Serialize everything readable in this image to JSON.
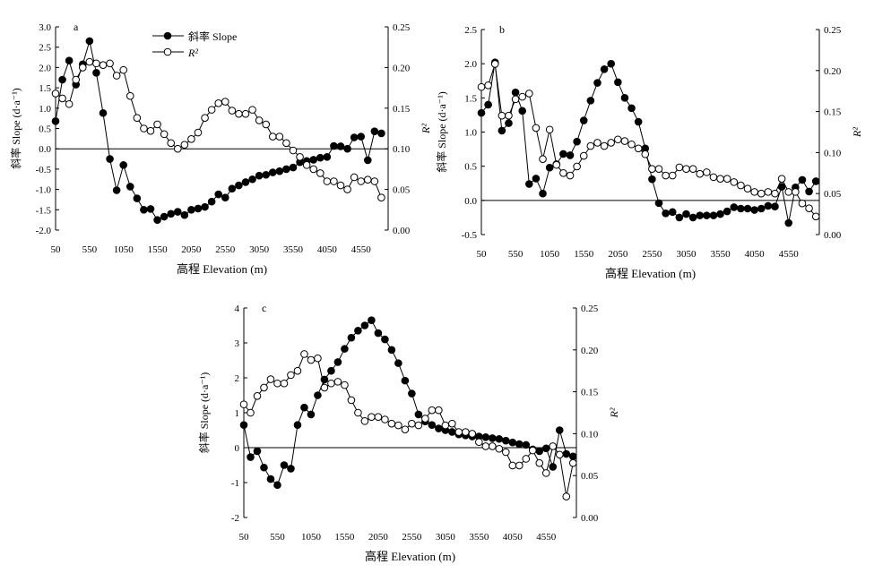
{
  "figure": {
    "x_axis_label": "高程 Elevation (m)",
    "y_left_label": "斜率 Slope (d·a⁻¹)",
    "y_right_label": "R²",
    "legend_slope": "斜率 Slope",
    "legend_r2": "R²"
  },
  "chart_data": [
    {
      "type": "line",
      "panel": "a",
      "xlabel": "高程 Elevation (m)",
      "ylabel": "斜率 Slope (d·a⁻¹)",
      "y2label": "R²",
      "xlim": [
        50,
        4950
      ],
      "ylim": [
        -2.0,
        3.0
      ],
      "y2lim": [
        0.0,
        0.25
      ],
      "xticks": [
        50,
        550,
        1050,
        1550,
        2050,
        2550,
        3050,
        3550,
        4050,
        4550
      ],
      "yticks": [
        -2.0,
        -1.5,
        -1.0,
        -0.5,
        0.0,
        0.5,
        1.0,
        1.5,
        2.0,
        2.5,
        3.0
      ],
      "y2ticks": [
        0.0,
        0.05,
        0.1,
        0.15,
        0.2,
        0.25
      ],
      "legend_position": "top-center",
      "series": [
        {
          "name": "斜率 Slope",
          "axis": "left",
          "marker": "filled-circle",
          "x": [
            50,
            150,
            250,
            350,
            450,
            550,
            650,
            750,
            850,
            950,
            1050,
            1150,
            1250,
            1350,
            1450,
            1550,
            1650,
            1750,
            1850,
            1950,
            2050,
            2150,
            2250,
            2350,
            2450,
            2550,
            2650,
            2750,
            2850,
            2950,
            3050,
            3150,
            3250,
            3350,
            3450,
            3550,
            3650,
            3750,
            3850,
            3950,
            4050,
            4150,
            4250,
            4350,
            4450,
            4550,
            4650,
            4750,
            4850
          ],
          "values": [
            0.68,
            1.7,
            2.17,
            1.58,
            2.08,
            2.65,
            1.87,
            0.88,
            -0.25,
            -1.02,
            -0.4,
            -0.93,
            -1.22,
            -1.5,
            -1.48,
            -1.75,
            -1.67,
            -1.6,
            -1.55,
            -1.63,
            -1.5,
            -1.47,
            -1.43,
            -1.3,
            -1.12,
            -1.2,
            -0.98,
            -0.9,
            -0.82,
            -0.75,
            -0.66,
            -0.64,
            -0.58,
            -0.55,
            -0.5,
            -0.46,
            -0.33,
            -0.3,
            -0.27,
            -0.22,
            -0.2,
            0.07,
            0.06,
            0.0,
            0.28,
            0.3,
            -0.28,
            0.43,
            0.38
          ]
        },
        {
          "name": "R²",
          "axis": "right",
          "marker": "open-circle",
          "x": [
            50,
            150,
            250,
            350,
            450,
            550,
            650,
            750,
            850,
            950,
            1050,
            1150,
            1250,
            1350,
            1450,
            1550,
            1650,
            1750,
            1850,
            1950,
            2050,
            2150,
            2250,
            2350,
            2450,
            2550,
            2650,
            2750,
            2850,
            2950,
            3050,
            3150,
            3250,
            3350,
            3450,
            3550,
            3650,
            3750,
            3850,
            3950,
            4050,
            4150,
            4250,
            4350,
            4450,
            4550,
            4650,
            4750,
            4850
          ],
          "values": [
            0.168,
            0.162,
            0.155,
            0.185,
            0.2,
            0.207,
            0.205,
            0.203,
            0.205,
            0.19,
            0.197,
            0.165,
            0.138,
            0.125,
            0.122,
            0.13,
            0.118,
            0.107,
            0.1,
            0.105,
            0.112,
            0.12,
            0.138,
            0.148,
            0.156,
            0.158,
            0.147,
            0.143,
            0.143,
            0.148,
            0.135,
            0.13,
            0.115,
            0.115,
            0.107,
            0.098,
            0.09,
            0.08,
            0.075,
            0.07,
            0.06,
            0.06,
            0.055,
            0.05,
            0.065,
            0.06,
            0.062,
            0.06,
            0.04
          ]
        }
      ]
    },
    {
      "type": "line",
      "panel": "b",
      "xlabel": "高程 Elevation (m)",
      "ylabel": "斜率 Slope (d·a⁻¹)",
      "y2label": "R²",
      "xlim": [
        50,
        5000
      ],
      "ylim": [
        -0.5,
        2.5
      ],
      "y2lim": [
        0.0,
        0.25
      ],
      "xticks": [
        50,
        550,
        1050,
        1550,
        2050,
        2550,
        3050,
        3550,
        4050,
        4550
      ],
      "yticks": [
        -0.5,
        0.0,
        0.5,
        1.0,
        1.5,
        2.0,
        2.5
      ],
      "y2ticks": [
        0.0,
        0.05,
        0.1,
        0.15,
        0.2,
        0.25
      ],
      "series": [
        {
          "name": "斜率 Slope",
          "axis": "left",
          "marker": "filled-circle",
          "x": [
            50,
            150,
            250,
            350,
            450,
            550,
            650,
            750,
            850,
            950,
            1050,
            1150,
            1250,
            1350,
            1450,
            1550,
            1650,
            1750,
            1850,
            1950,
            2050,
            2150,
            2250,
            2350,
            2450,
            2550,
            2650,
            2750,
            2850,
            2950,
            3050,
            3150,
            3250,
            3350,
            3450,
            3550,
            3650,
            3750,
            3850,
            3950,
            4050,
            4150,
            4250,
            4350,
            4450,
            4550,
            4650,
            4750,
            4850,
            4950
          ],
          "values": [
            1.28,
            1.4,
            2.02,
            1.02,
            1.13,
            1.58,
            1.31,
            0.24,
            0.32,
            0.1,
            0.48,
            0.53,
            0.68,
            0.66,
            0.86,
            1.17,
            1.46,
            1.72,
            1.92,
            2.0,
            1.73,
            1.5,
            1.35,
            1.15,
            0.76,
            0.31,
            -0.04,
            -0.19,
            -0.17,
            -0.25,
            -0.2,
            -0.25,
            -0.22,
            -0.22,
            -0.22,
            -0.2,
            -0.16,
            -0.1,
            -0.12,
            -0.12,
            -0.14,
            -0.12,
            -0.08,
            -0.09,
            0.2,
            -0.33,
            0.19,
            0.3,
            0.13,
            0.28
          ]
        },
        {
          "name": "R²",
          "axis": "right",
          "marker": "open-circle",
          "x": [
            50,
            150,
            250,
            350,
            450,
            550,
            650,
            750,
            850,
            950,
            1050,
            1150,
            1250,
            1350,
            1450,
            1550,
            1650,
            1750,
            1850,
            1950,
            2050,
            2150,
            2250,
            2350,
            2450,
            2550,
            2650,
            2750,
            2850,
            2950,
            3050,
            3150,
            3250,
            3350,
            3450,
            3550,
            3650,
            3750,
            3850,
            3950,
            4050,
            4150,
            4250,
            4350,
            4450,
            4550,
            4650,
            4750,
            4850,
            4950
          ],
          "values": [
            0.18,
            0.182,
            0.208,
            0.145,
            0.145,
            0.165,
            0.168,
            0.172,
            0.13,
            0.092,
            0.128,
            0.085,
            0.075,
            0.072,
            0.083,
            0.096,
            0.108,
            0.112,
            0.108,
            0.112,
            0.116,
            0.114,
            0.11,
            0.105,
            0.098,
            0.08,
            0.08,
            0.072,
            0.072,
            0.082,
            0.08,
            0.08,
            0.074,
            0.076,
            0.07,
            0.068,
            0.068,
            0.064,
            0.06,
            0.056,
            0.052,
            0.05,
            0.052,
            0.05,
            0.068,
            0.052,
            0.052,
            0.038,
            0.032,
            0.022
          ]
        }
      ]
    },
    {
      "type": "line",
      "panel": "c",
      "xlabel": "高程 Elevation (m)",
      "ylabel": "斜率 Slope (d·a⁻¹)",
      "y2label": "R²",
      "xlim": [
        50,
        5000
      ],
      "ylim": [
        -2,
        4
      ],
      "y2lim": [
        0.0,
        0.25
      ],
      "xticks": [
        50,
        550,
        1050,
        1550,
        2050,
        2550,
        3050,
        3550,
        4050,
        4550
      ],
      "yticks": [
        -2,
        -1,
        0,
        1,
        2,
        3,
        4
      ],
      "y2ticks": [
        0.0,
        0.05,
        0.1,
        0.15,
        0.2,
        0.25
      ],
      "series": [
        {
          "name": "斜率 Slope",
          "axis": "left",
          "marker": "filled-circle",
          "x": [
            50,
            150,
            250,
            350,
            450,
            550,
            650,
            750,
            850,
            950,
            1050,
            1150,
            1250,
            1350,
            1450,
            1550,
            1650,
            1750,
            1850,
            1950,
            2050,
            2150,
            2250,
            2350,
            2450,
            2550,
            2650,
            2750,
            2850,
            2950,
            3050,
            3150,
            3250,
            3350,
            3450,
            3550,
            3650,
            3750,
            3850,
            3950,
            4050,
            4150,
            4250,
            4350,
            4450,
            4550,
            4650,
            4750,
            4850,
            4950
          ],
          "values": [
            0.65,
            -0.27,
            -0.1,
            -0.57,
            -0.9,
            -1.07,
            -0.5,
            -0.6,
            0.65,
            1.15,
            0.95,
            1.5,
            1.95,
            2.2,
            2.45,
            2.83,
            3.15,
            3.35,
            3.5,
            3.65,
            3.28,
            3.1,
            2.8,
            2.42,
            1.92,
            1.55,
            0.95,
            0.75,
            0.65,
            0.55,
            0.5,
            0.45,
            0.38,
            0.35,
            0.32,
            0.32,
            0.3,
            0.27,
            0.25,
            0.2,
            0.15,
            0.1,
            0.08,
            -0.05,
            -0.1,
            -0.02,
            -0.55,
            0.5,
            -0.18,
            -0.25
          ]
        },
        {
          "name": "R²",
          "axis": "right",
          "marker": "open-circle",
          "x": [
            50,
            150,
            250,
            350,
            450,
            550,
            650,
            750,
            850,
            950,
            1050,
            1150,
            1250,
            1350,
            1450,
            1550,
            1650,
            1750,
            1850,
            1950,
            2050,
            2150,
            2250,
            2350,
            2450,
            2550,
            2650,
            2750,
            2850,
            2950,
            3050,
            3150,
            3250,
            3350,
            3450,
            3550,
            3650,
            3750,
            3850,
            3950,
            4050,
            4150,
            4250,
            4350,
            4450,
            4550,
            4650,
            4750,
            4850,
            4950
          ],
          "values": [
            0.135,
            0.125,
            0.145,
            0.155,
            0.165,
            0.16,
            0.16,
            0.17,
            0.175,
            0.195,
            0.188,
            0.19,
            0.155,
            0.16,
            0.162,
            0.158,
            0.14,
            0.125,
            0.115,
            0.12,
            0.12,
            0.117,
            0.112,
            0.11,
            0.105,
            0.112,
            0.11,
            0.118,
            0.128,
            0.128,
            0.11,
            0.112,
            0.102,
            0.102,
            0.1,
            0.09,
            0.085,
            0.085,
            0.082,
            0.078,
            0.062,
            0.062,
            0.07,
            0.08,
            0.065,
            0.053,
            0.085,
            0.075,
            0.025,
            0.065
          ]
        }
      ]
    }
  ]
}
